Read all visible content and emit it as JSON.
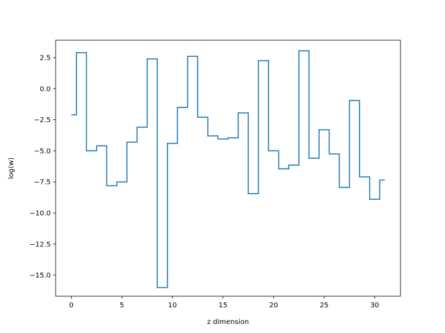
{
  "chart_data": {
    "type": "line",
    "drawstyle": "steps-mid",
    "title": "",
    "xlabel": "z dimension",
    "ylabel": "log(w)",
    "xlim": [
      -1.55,
      32.55
    ],
    "ylim": [
      -16.7,
      3.9
    ],
    "xticks": [
      0,
      5,
      10,
      15,
      20,
      25,
      30
    ],
    "yticks": [
      -15.0,
      -12.5,
      -10.0,
      -7.5,
      -5.0,
      -2.5,
      0.0,
      2.5
    ],
    "ytick_labels": [
      "−15.0",
      "−12.5",
      "−10.0",
      "−7.5",
      "−5.0",
      "−2.5",
      "0.0",
      "2.5"
    ],
    "grid": false,
    "color": "#1f77b4",
    "series": [
      {
        "x": [
          0,
          1,
          2,
          3,
          4,
          5,
          6,
          7,
          8,
          9,
          10,
          11,
          12,
          13,
          14,
          15,
          16,
          17,
          18,
          19,
          20,
          21,
          22,
          23,
          24,
          25,
          26,
          27,
          28,
          29,
          30,
          31
        ],
        "values": [
          -2.1,
          2.9,
          -5.0,
          -4.6,
          -7.8,
          -7.5,
          -4.3,
          -3.1,
          2.4,
          -16.0,
          -4.4,
          -1.5,
          2.6,
          -2.3,
          -3.8,
          -4.05,
          -3.95,
          -1.95,
          -8.45,
          2.25,
          -5.0,
          -6.45,
          -6.15,
          3.05,
          -5.6,
          -3.3,
          -5.25,
          -7.95,
          -0.95,
          -7.1,
          -8.9,
          -7.35
        ]
      }
    ]
  }
}
